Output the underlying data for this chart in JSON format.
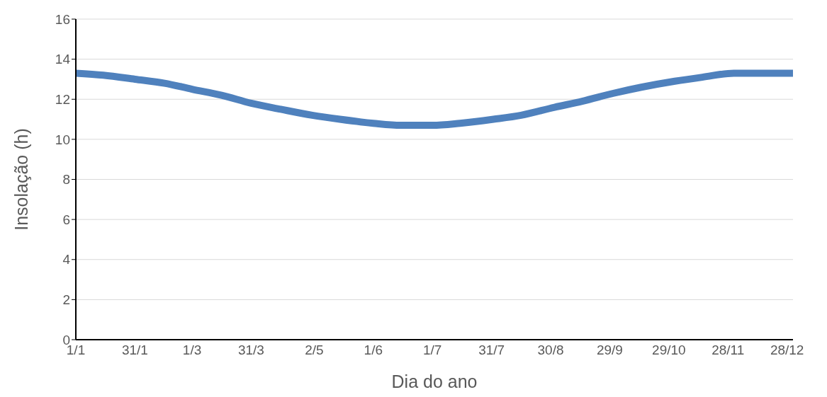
{
  "chart_data": {
    "type": "line",
    "xlabel": "Dia do ano",
    "ylabel": "Insolação (h)",
    "x": [
      "--01-01",
      "--01-15",
      "--01-31",
      "--02-15",
      "--03-01",
      "--03-16",
      "--03-31",
      "--04-15",
      "--05-01",
      "--05-15",
      "--06-01",
      "--06-15",
      "--07-01",
      "--07-15",
      "--08-01",
      "--08-15",
      "--09-01",
      "--09-15",
      "--10-01",
      "--10-15",
      "--11-01",
      "--11-15",
      "--12-01",
      "--12-15",
      "--12-31"
    ],
    "series": [
      {
        "color": "#4f81bd",
        "values": [
          13.3,
          13.2,
          13.0,
          12.8,
          12.5,
          12.2,
          11.8,
          11.5,
          11.2,
          11.0,
          10.8,
          10.7,
          10.7,
          10.8,
          11.0,
          11.2,
          11.6,
          11.9,
          12.3,
          12.6,
          12.9,
          13.1,
          13.3,
          13.3,
          13.3
        ]
      }
    ],
    "xlim": [
      "--01-01",
      "--12-31"
    ],
    "xticks": [
      {
        "value": "--01-01",
        "label": "1/1"
      },
      {
        "value": "--01-31",
        "label": "31/1"
      },
      {
        "value": "--03-01",
        "label": "1/3"
      },
      {
        "value": "--03-31",
        "label": "31/3"
      },
      {
        "value": "--05-02",
        "label": "2/5"
      },
      {
        "value": "--06-01",
        "label": "1/6"
      },
      {
        "value": "--07-01",
        "label": "1/7"
      },
      {
        "value": "--07-31",
        "label": "31/7"
      },
      {
        "value": "--08-30",
        "label": "30/8"
      },
      {
        "value": "--09-29",
        "label": "29/9"
      },
      {
        "value": "--10-29",
        "label": "29/10"
      },
      {
        "value": "--11-28",
        "label": "28/11"
      },
      {
        "value": "--12-28",
        "label": "28/12"
      }
    ],
    "ylim": [
      0,
      16
    ],
    "yticks": [
      0,
      2,
      4,
      6,
      8,
      10,
      12,
      14,
      16
    ],
    "grid": "y",
    "marker": "none",
    "line_style": "solid"
  }
}
